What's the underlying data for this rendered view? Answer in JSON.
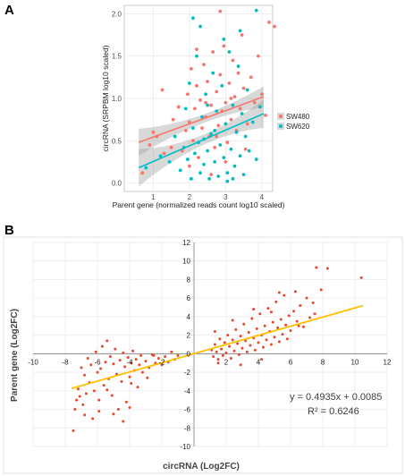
{
  "panels": {
    "a_label": "A",
    "b_label": "B"
  },
  "chart_data": [
    {
      "type": "scatter",
      "panel": "A",
      "xlabel": "Parent gene (normalized reads count log10 scaled)",
      "ylabel": "circRNA (SRPBM log10 scaled)",
      "xlim": [
        0.2,
        4.3
      ],
      "ylim": [
        -0.1,
        2.1
      ],
      "xticks": [
        "1",
        "2",
        "3",
        "4"
      ],
      "yticks": [
        "0.0",
        "0.5",
        "1.0",
        "1.5",
        "2.0"
      ],
      "grid": true,
      "legend_position": "right",
      "series": [
        {
          "name": "SW480",
          "color": "#F8766D",
          "fit": {
            "x0": 0.6,
            "y0": 0.48,
            "x1": 4.05,
            "y1": 1.02,
            "se_top": 0.16,
            "se_mid": 0.05
          },
          "points": [
            [
              0.7,
              0.12
            ],
            [
              0.9,
              0.45
            ],
            [
              1.0,
              0.6
            ],
            [
              1.1,
              0.55
            ],
            [
              1.3,
              0.35
            ],
            [
              1.5,
              0.42
            ],
            [
              1.55,
              0.75
            ],
            [
              1.7,
              0.9
            ],
            [
              1.8,
              0.38
            ],
            [
              1.9,
              0.62
            ],
            [
              1.95,
              1.05
            ],
            [
              2.0,
              0.72
            ],
            [
              2.05,
              1.35
            ],
            [
              2.1,
              0.5
            ],
            [
              2.15,
              0.88
            ],
            [
              2.2,
              1.15
            ],
            [
              2.25,
              0.3
            ],
            [
              2.3,
              0.98
            ],
            [
              2.35,
              0.65
            ],
            [
              2.4,
              1.4
            ],
            [
              2.45,
              0.78
            ],
            [
              2.5,
              1.2
            ],
            [
              2.55,
              0.55
            ],
            [
              2.6,
              0.92
            ],
            [
              2.65,
              1.55
            ],
            [
              2.7,
              0.42
            ],
            [
              2.75,
              1.08
            ],
            [
              2.8,
              0.68
            ],
            [
              2.85,
              1.28
            ],
            [
              2.9,
              0.85
            ],
            [
              2.95,
              1.62
            ],
            [
              3.0,
              0.95
            ],
            [
              3.05,
              0.48
            ],
            [
              3.1,
              1.18
            ],
            [
              3.15,
              0.75
            ],
            [
              3.2,
              1.45
            ],
            [
              3.25,
              1.02
            ],
            [
              3.3,
              0.62
            ],
            [
              3.35,
              1.3
            ],
            [
              3.4,
              0.88
            ],
            [
              3.5,
              1.12
            ],
            [
              3.6,
              0.7
            ],
            [
              3.7,
              1.25
            ],
            [
              3.8,
              0.95
            ],
            [
              3.9,
              1.5
            ],
            [
              4.0,
              1.05
            ],
            [
              4.1,
              0.8
            ],
            [
              2.85,
              2.03
            ],
            [
              4.2,
              1.9
            ],
            [
              4.35,
              1.85
            ],
            [
              3.45,
              1.75
            ],
            [
              1.25,
              1.1
            ],
            [
              2.0,
              0.2
            ],
            [
              2.6,
              0.1
            ],
            [
              3.0,
              0.25
            ],
            [
              3.55,
              0.4
            ],
            [
              2.2,
              1.58
            ],
            [
              2.75,
              0.55
            ],
            [
              3.15,
              1.0
            ],
            [
              2.45,
              0.95
            ]
          ]
        },
        {
          "name": "SW620",
          "color": "#00BFC4",
          "fit": {
            "x0": 0.6,
            "y0": 0.18,
            "x1": 4.05,
            "y1": 0.82,
            "se_top": 0.22,
            "se_mid": 0.06
          },
          "points": [
            [
              0.8,
              0.18
            ],
            [
              1.2,
              0.32
            ],
            [
              1.45,
              0.25
            ],
            [
              1.6,
              0.55
            ],
            [
              1.75,
              0.15
            ],
            [
              1.85,
              0.42
            ],
            [
              1.95,
              0.28
            ],
            [
              2.0,
              1.18
            ],
            [
              2.05,
              0.05
            ],
            [
              2.1,
              0.65
            ],
            [
              2.15,
              0.35
            ],
            [
              2.2,
              1.5
            ],
            [
              2.25,
              0.48
            ],
            [
              2.3,
              0.12
            ],
            [
              2.35,
              0.78
            ],
            [
              2.4,
              0.22
            ],
            [
              2.45,
              1.05
            ],
            [
              2.5,
              0.38
            ],
            [
              2.55,
              0.05
            ],
            [
              2.6,
              0.58
            ],
            [
              2.65,
              1.3
            ],
            [
              2.7,
              0.25
            ],
            [
              2.75,
              0.85
            ],
            [
              2.8,
              0.08
            ],
            [
              2.85,
              0.45
            ],
            [
              2.9,
              1.15
            ],
            [
              2.95,
              0.3
            ],
            [
              3.0,
              0.7
            ],
            [
              3.05,
              0.12
            ],
            [
              3.1,
              1.55
            ],
            [
              3.15,
              0.4
            ],
            [
              3.2,
              0.92
            ],
            [
              3.25,
              0.2
            ],
            [
              3.3,
              0.6
            ],
            [
              3.35,
              1.38
            ],
            [
              3.4,
              0.32
            ],
            [
              3.45,
              0.82
            ],
            [
              3.5,
              0.1
            ],
            [
              3.55,
              0.55
            ],
            [
              3.6,
              1.1
            ],
            [
              3.65,
              0.38
            ],
            [
              3.75,
              0.72
            ],
            [
              3.85,
              0.28
            ],
            [
              3.95,
              0.9
            ],
            [
              2.3,
              1.85
            ],
            [
              2.95,
              1.7
            ],
            [
              3.85,
              2.04
            ],
            [
              2.1,
              1.95
            ],
            [
              2.5,
              0.92
            ],
            [
              3.05,
              0.02
            ],
            [
              2.7,
              0.62
            ],
            [
              1.9,
              0.88
            ],
            [
              3.2,
              0.05
            ],
            [
              2.4,
              0.52
            ],
            [
              3.4,
              1.8
            ]
          ]
        }
      ]
    },
    {
      "type": "scatter",
      "panel": "B",
      "xlabel": "circRNA (Log2FC)",
      "ylabel": "Parent gene (Log2FC)",
      "xlim": [
        -10,
        12
      ],
      "ylim": [
        -10,
        12
      ],
      "xticks": [
        "-10",
        "-8",
        "-6",
        "-4",
        "-2",
        "0",
        "2",
        "4",
        "6",
        "8",
        "10",
        "12"
      ],
      "yticks": [
        "12",
        "10",
        "8",
        "6",
        "4",
        "2",
        "0",
        "-2",
        "-4",
        "-6",
        "-8",
        "-10"
      ],
      "grid": true,
      "point_color": "#E8472C",
      "trendline": {
        "color": "#FFC000",
        "slope": 0.4935,
        "intercept": 0.0085,
        "x_from": -7.6,
        "x_to": 10.5
      },
      "equation": "y = 0.4935x + 0.0085",
      "r2": "R² = 0.6246",
      "points": [
        [
          -7.5,
          -8.3
        ],
        [
          -7.4,
          -6.0
        ],
        [
          -7.3,
          -5.0
        ],
        [
          -7.2,
          -3.8
        ],
        [
          -7.0,
          -1.5
        ],
        [
          -6.9,
          -5.5
        ],
        [
          -6.8,
          -2.3
        ],
        [
          -6.6,
          -0.5
        ],
        [
          -6.5,
          -3.1
        ],
        [
          -6.4,
          -1.2
        ],
        [
          -6.2,
          -4.0
        ],
        [
          -6.1,
          0.2
        ],
        [
          -6.0,
          -2.0
        ],
        [
          -5.9,
          -5.0
        ],
        [
          -5.8,
          -1.6
        ],
        [
          -5.7,
          0.8
        ],
        [
          -5.6,
          -3.4
        ],
        [
          -5.5,
          -0.9
        ],
        [
          -5.4,
          1.4
        ],
        [
          -5.3,
          -2.7
        ],
        [
          -5.2,
          -0.3
        ],
        [
          -5.1,
          -4.5
        ],
        [
          -5.0,
          -1.1
        ],
        [
          -4.9,
          0.5
        ],
        [
          -4.8,
          -2.2
        ],
        [
          -4.7,
          -6.0
        ],
        [
          -4.6,
          -0.7
        ],
        [
          -4.5,
          -3.0
        ],
        [
          -4.4,
          0.1
        ],
        [
          -4.3,
          -1.4
        ],
        [
          -4.2,
          -5.2
        ],
        [
          -4.1,
          -0.4
        ],
        [
          -4.0,
          -2.5
        ],
        [
          -3.9,
          -1.0
        ],
        [
          -3.8,
          0.3
        ],
        [
          -3.7,
          -1.8
        ],
        [
          -3.6,
          -0.6
        ],
        [
          -3.5,
          -3.6
        ],
        [
          -3.4,
          -1.2
        ],
        [
          -3.3,
          -0.2
        ],
        [
          -3.2,
          -2.0
        ],
        [
          -3.0,
          -0.8
        ],
        [
          -2.8,
          -1.5
        ],
        [
          -2.6,
          -0.1
        ],
        [
          -2.4,
          -1.0
        ],
        [
          -2.2,
          -0.5
        ],
        [
          -2.0,
          -1.2
        ],
        [
          -1.8,
          -0.3
        ],
        [
          -1.6,
          -0.9
        ],
        [
          -1.4,
          0.2
        ],
        [
          -1.2,
          -0.6
        ],
        [
          -1.0,
          -0.2
        ],
        [
          -6.3,
          -7.0
        ],
        [
          -5.9,
          -6.2
        ],
        [
          -5.0,
          -6.5
        ],
        [
          -4.4,
          -7.3
        ],
        [
          -4.0,
          -5.8
        ],
        [
          -6.7,
          -4.3
        ],
        [
          -5.4,
          -3.9
        ],
        [
          -3.9,
          -3.2
        ],
        [
          -2.9,
          -2.6
        ],
        [
          -2.5,
          -0.2
        ],
        [
          -6.8,
          -6.6
        ],
        [
          -7.1,
          -4.6
        ],
        [
          1.1,
          0.4
        ],
        [
          1.2,
          -0.3
        ],
        [
          1.3,
          1.0
        ],
        [
          1.4,
          0.2
        ],
        [
          1.5,
          -0.6
        ],
        [
          1.6,
          1.6
        ],
        [
          1.7,
          0.5
        ],
        [
          1.8,
          -0.2
        ],
        [
          1.9,
          1.2
        ],
        [
          2.0,
          0.1
        ],
        [
          2.1,
          2.0
        ],
        [
          2.2,
          0.8
        ],
        [
          2.3,
          -0.5
        ],
        [
          2.4,
          1.5
        ],
        [
          2.5,
          0.3
        ],
        [
          2.6,
          2.6
        ],
        [
          2.7,
          1.1
        ],
        [
          2.8,
          -0.1
        ],
        [
          2.9,
          1.9
        ],
        [
          3.0,
          0.6
        ],
        [
          3.1,
          3.2
        ],
        [
          3.2,
          1.4
        ],
        [
          3.3,
          0.2
        ],
        [
          3.4,
          2.3
        ],
        [
          3.5,
          0.9
        ],
        [
          3.6,
          3.8
        ],
        [
          3.7,
          1.7
        ],
        [
          3.8,
          0.4
        ],
        [
          3.9,
          2.7
        ],
        [
          4.0,
          1.2
        ],
        [
          4.1,
          4.3
        ],
        [
          4.2,
          2.0
        ],
        [
          4.3,
          0.7
        ],
        [
          4.4,
          3.0
        ],
        [
          4.5,
          1.5
        ],
        [
          4.6,
          4.9
        ],
        [
          4.7,
          2.4
        ],
        [
          4.8,
          1.0
        ],
        [
          4.9,
          3.4
        ],
        [
          5.0,
          1.8
        ],
        [
          5.1,
          5.6
        ],
        [
          5.2,
          2.8
        ],
        [
          5.3,
          1.3
        ],
        [
          5.4,
          3.7
        ],
        [
          5.5,
          2.1
        ],
        [
          5.6,
          6.3
        ],
        [
          5.7,
          3.1
        ],
        [
          5.8,
          1.6
        ],
        [
          5.9,
          4.1
        ],
        [
          6.0,
          2.5
        ],
        [
          6.2,
          4.6
        ],
        [
          6.4,
          3.5
        ],
        [
          6.6,
          5.2
        ],
        [
          6.8,
          2.9
        ],
        [
          7.0,
          6.0
        ],
        [
          7.2,
          3.9
        ],
        [
          7.4,
          5.5
        ],
        [
          7.6,
          9.3
        ],
        [
          8.3,
          9.2
        ],
        [
          10.4,
          8.2
        ],
        [
          7.9,
          6.9
        ],
        [
          6.3,
          6.7
        ],
        [
          1.5,
          -1.0
        ],
        [
          2.9,
          -1.2
        ],
        [
          4.2,
          -0.6
        ],
        [
          1.3,
          2.4
        ],
        [
          2.4,
          3.6
        ],
        [
          3.7,
          4.8
        ],
        [
          5.3,
          6.6
        ],
        [
          4.8,
          4.5
        ],
        [
          6.5,
          3.0
        ],
        [
          7.5,
          4.3
        ]
      ]
    }
  ]
}
